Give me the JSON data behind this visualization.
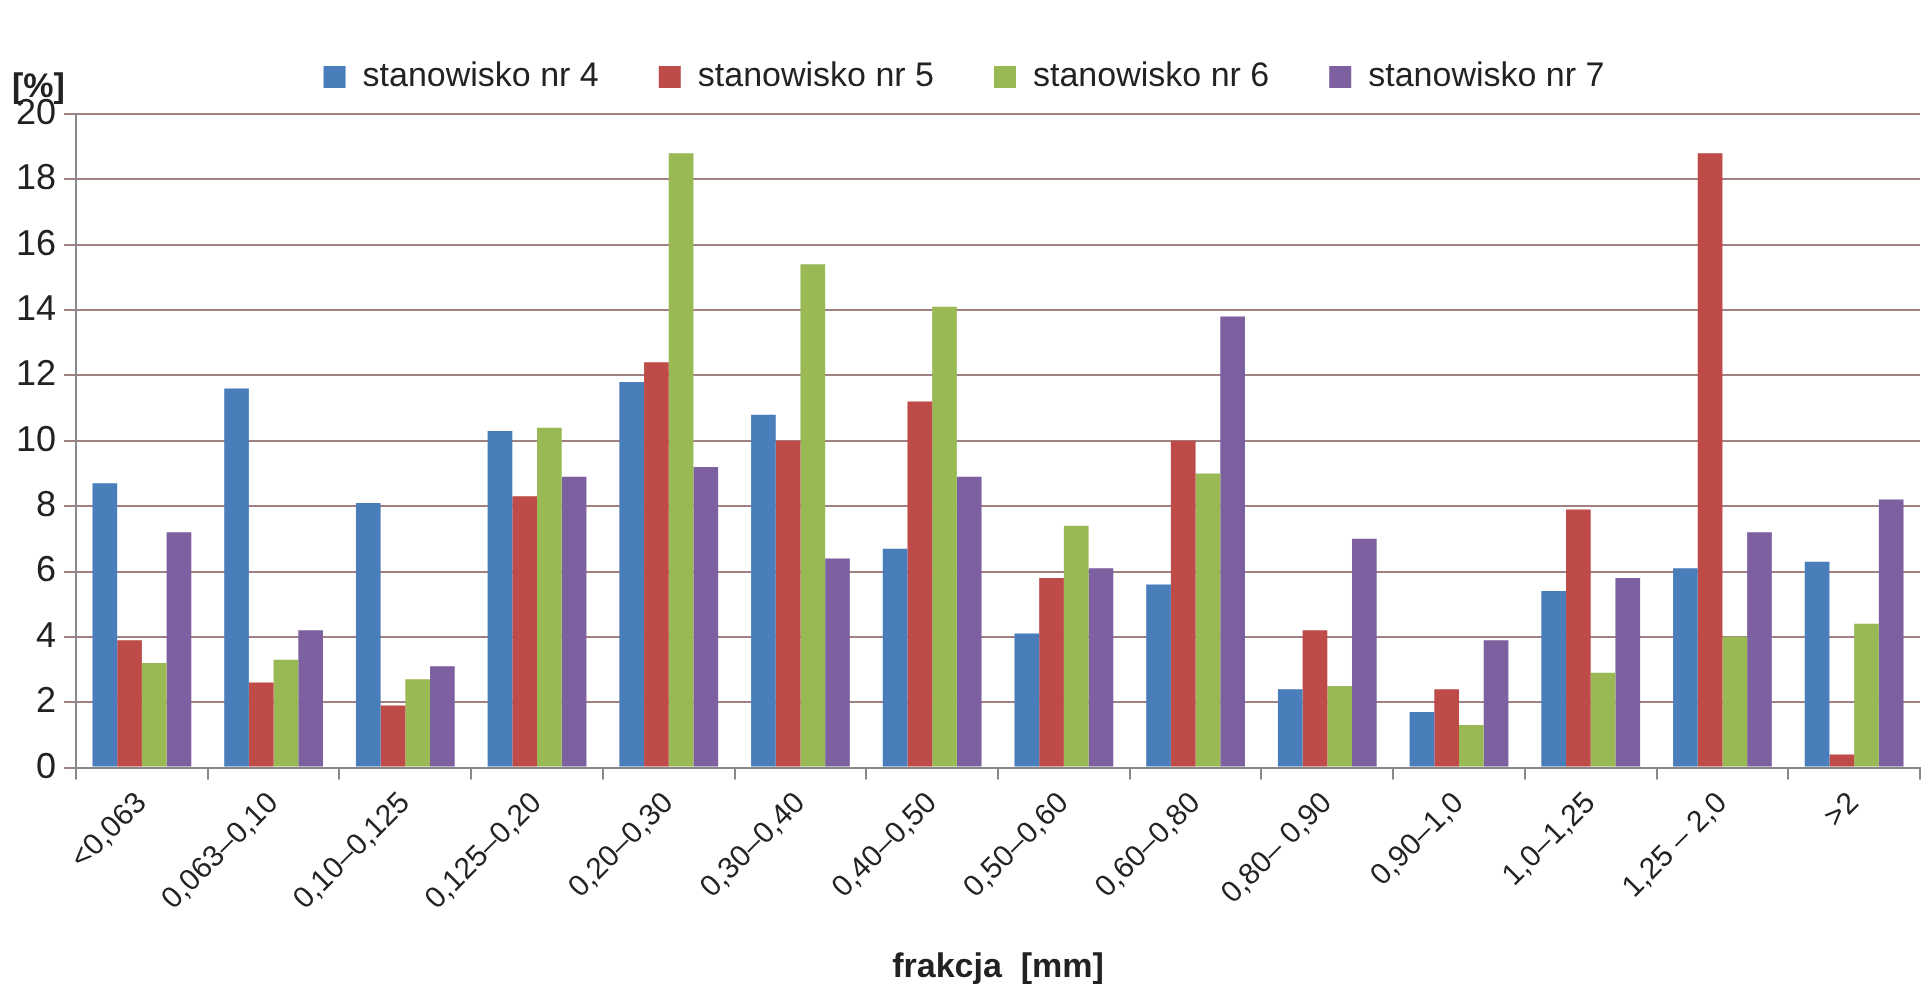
{
  "chart_data": {
    "type": "bar",
    "xlabel": "frakcja  [mm]",
    "ylabel": "[%]",
    "categories": [
      "<0,063",
      "0,063–0,10",
      "0,10–0,125",
      "0,125–0,20",
      "0,20–0,30",
      "0,30–0,40",
      "0,40–0,50",
      "0,50–0,60",
      "0,60–0,80",
      "0,80– 0,90",
      "0,90–1,0",
      "1,0–1,25",
      "1,25 – 2,0",
      ">2"
    ],
    "series": [
      {
        "name": "stanowisko nr 4",
        "color": "#4a7ebb",
        "values": [
          8.7,
          11.6,
          8.1,
          10.3,
          11.8,
          10.8,
          6.7,
          4.1,
          5.6,
          2.4,
          1.7,
          5.4,
          6.1,
          6.3
        ]
      },
      {
        "name": "stanowisko nr 5",
        "color": "#be4b48",
        "values": [
          3.9,
          2.6,
          1.9,
          8.3,
          12.4,
          10.0,
          11.2,
          5.8,
          10.0,
          4.2,
          2.4,
          7.9,
          18.8,
          0.4
        ]
      },
      {
        "name": "stanowisko nr 6",
        "color": "#98b954",
        "values": [
          3.2,
          3.3,
          2.7,
          10.4,
          18.8,
          15.4,
          14.1,
          7.4,
          9.0,
          2.5,
          1.3,
          2.9,
          4.0,
          4.4
        ]
      },
      {
        "name": "stanowisko nr 7",
        "color": "#7d60a0",
        "values": [
          7.2,
          4.2,
          3.1,
          8.9,
          9.2,
          6.4,
          8.9,
          6.1,
          13.8,
          7.0,
          3.9,
          5.8,
          7.2,
          8.2
        ]
      }
    ],
    "ylim": [
      0,
      20
    ],
    "yticks": [
      0,
      2,
      4,
      6,
      8,
      10,
      12,
      14,
      16,
      18,
      20
    ],
    "grid": "y",
    "legend": "top"
  }
}
